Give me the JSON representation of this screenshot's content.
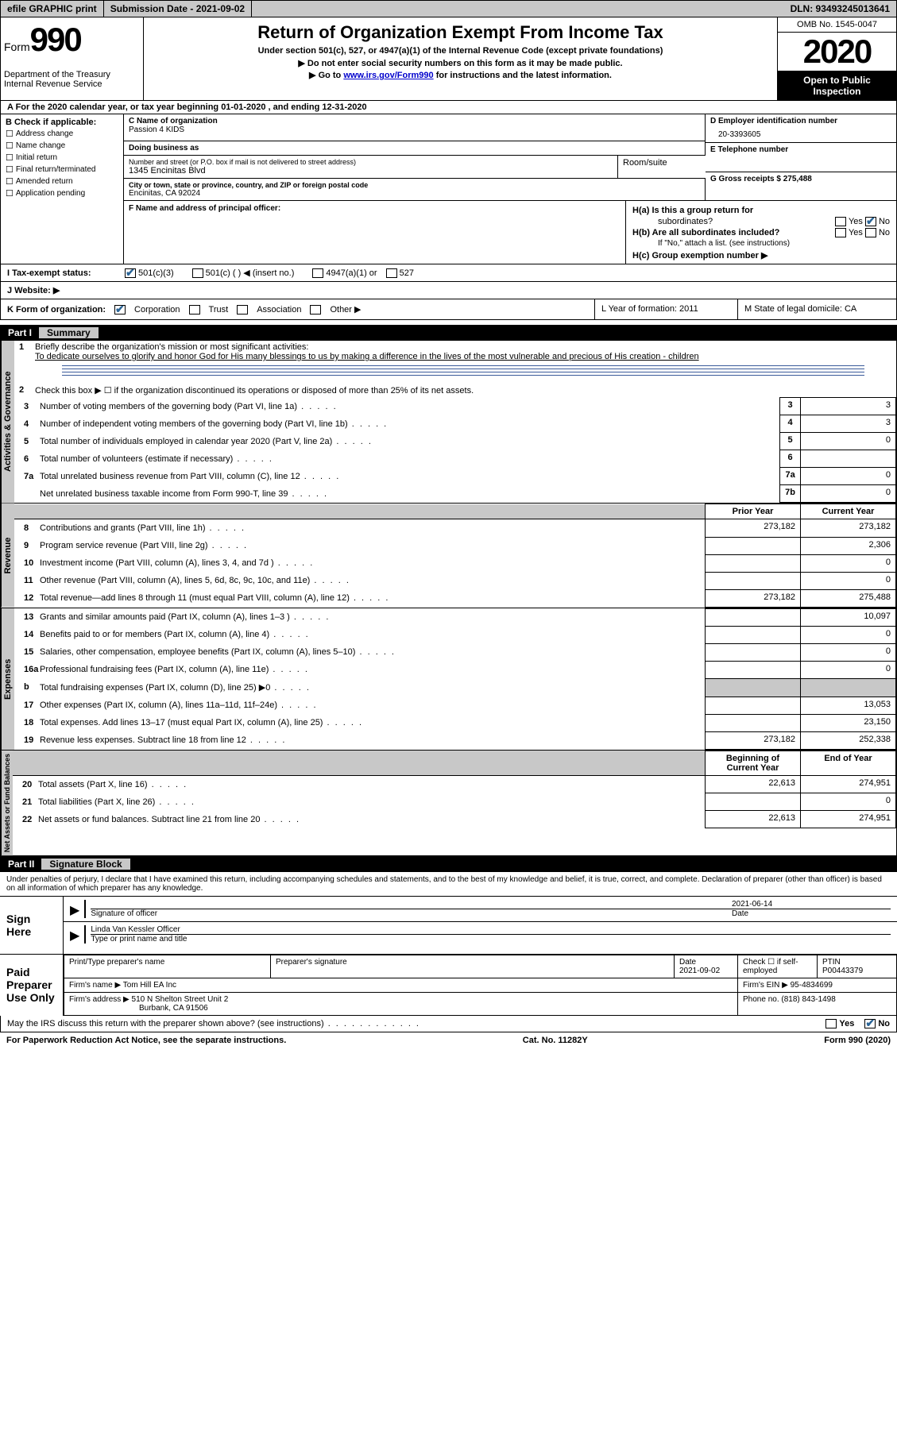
{
  "topbar": {
    "efile": "efile GRAPHIC print",
    "submission_label": "Submission Date - 2021-09-02",
    "dln_label": "DLN: 93493245013641"
  },
  "header": {
    "form_label": "Form",
    "form_number": "990",
    "dept": "Department of the Treasury",
    "irs": "Internal Revenue Service",
    "title": "Return of Organization Exempt From Income Tax",
    "subtitle": "Under section 501(c), 527, or 4947(a)(1) of the Internal Revenue Code (except private foundations)",
    "note1": "▶ Do not enter social security numbers on this form as it may be made public.",
    "note2_pre": "▶ Go to ",
    "note2_link": "www.irs.gov/Form990",
    "note2_post": " for instructions and the latest information.",
    "omb": "OMB No. 1545-0047",
    "year": "2020",
    "inspection": "Open to Public Inspection"
  },
  "section_a": "A   For the 2020 calendar year, or tax year beginning 01-01-2020    , and ending 12-31-2020",
  "col_b": {
    "label": "B Check if applicable:",
    "items": [
      "Address change",
      "Name change",
      "Initial return",
      "Final return/terminated",
      "Amended return",
      "Application pending"
    ]
  },
  "col_c": {
    "name_label": "C Name of organization",
    "name": "Passion 4 KIDS",
    "dba_label": "Doing business as",
    "addr_label": "Number and street (or P.O. box if mail is not delivered to street address)",
    "addr": "1345 Encinitas Blvd",
    "room_label": "Room/suite",
    "city_label": "City or town, state or province, country, and ZIP or foreign postal code",
    "city": "Encinitas, CA  92024"
  },
  "col_de": {
    "d_label": "D Employer identification number",
    "d_value": "20-3393605",
    "e_label": "E Telephone number",
    "g_label": "G Gross receipts $ 275,488"
  },
  "officer": {
    "f_label": "F Name and address of principal officer:",
    "ha": "H(a)  Is this a group return for",
    "ha2": "subordinates?",
    "hb": "H(b)  Are all subordinates included?",
    "hb_note": "If \"No,\" attach a list. (see instructions)",
    "hc": "H(c)  Group exemption number ▶",
    "yes": "Yes",
    "no": "No"
  },
  "status": {
    "i_label": "I    Tax-exempt status:",
    "opt1": "501(c)(3)",
    "opt2": "501(c) (  ) ◀ (insert no.)",
    "opt3": "4947(a)(1) or",
    "opt4": "527"
  },
  "website": {
    "j_label": "J    Website: ▶"
  },
  "k_row": {
    "k_label": "K Form of organization:",
    "corp": "Corporation",
    "trust": "Trust",
    "assoc": "Association",
    "other": "Other ▶",
    "l_label": "L Year of formation: 2011",
    "m_label": "M State of legal domicile: CA"
  },
  "part1": {
    "header_num": "Part I",
    "header_title": "Summary",
    "line1_label": "Briefly describe the organization's mission or most significant activities:",
    "line1_text": "To dedicate ourselves to glorify and honor God for His many blessings to us by making a difference in the lives of the most vulnerable and precious of His creation - children",
    "line2": "Check this box ▶ ☐  if the organization discontinued its operations or disposed of more than 25% of its net assets.",
    "gov_label": "Activities & Governance",
    "rev_label": "Revenue",
    "exp_label": "Expenses",
    "net_label": "Net Assets or Fund Balances",
    "lines_gov": [
      {
        "n": "3",
        "t": "Number of voting members of the governing body (Part VI, line 1a)",
        "b": "3",
        "v": "3"
      },
      {
        "n": "4",
        "t": "Number of independent voting members of the governing body (Part VI, line 1b)",
        "b": "4",
        "v": "3"
      },
      {
        "n": "5",
        "t": "Total number of individuals employed in calendar year 2020 (Part V, line 2a)",
        "b": "5",
        "v": "0"
      },
      {
        "n": "6",
        "t": "Total number of volunteers (estimate if necessary)",
        "b": "6",
        "v": ""
      },
      {
        "n": "7a",
        "t": "Total unrelated business revenue from Part VIII, column (C), line 12",
        "b": "7a",
        "v": "0"
      },
      {
        "n": "",
        "t": "Net unrelated business taxable income from Form 990-T, line 39",
        "b": "7b",
        "v": "0"
      }
    ],
    "prior_label": "Prior Year",
    "current_label": "Current Year",
    "lines_rev": [
      {
        "n": "8",
        "t": "Contributions and grants (Part VIII, line 1h)",
        "p": "273,182",
        "c": "273,182"
      },
      {
        "n": "9",
        "t": "Program service revenue (Part VIII, line 2g)",
        "p": "",
        "c": "2,306"
      },
      {
        "n": "10",
        "t": "Investment income (Part VIII, column (A), lines 3, 4, and 7d )",
        "p": "",
        "c": "0"
      },
      {
        "n": "11",
        "t": "Other revenue (Part VIII, column (A), lines 5, 6d, 8c, 9c, 10c, and 11e)",
        "p": "",
        "c": "0"
      },
      {
        "n": "12",
        "t": "Total revenue—add lines 8 through 11 (must equal Part VIII, column (A), line 12)",
        "p": "273,182",
        "c": "275,488"
      }
    ],
    "lines_exp": [
      {
        "n": "13",
        "t": "Grants and similar amounts paid (Part IX, column (A), lines 1–3 )",
        "p": "",
        "c": "10,097"
      },
      {
        "n": "14",
        "t": "Benefits paid to or for members (Part IX, column (A), line 4)",
        "p": "",
        "c": "0"
      },
      {
        "n": "15",
        "t": "Salaries, other compensation, employee benefits (Part IX, column (A), lines 5–10)",
        "p": "",
        "c": "0"
      },
      {
        "n": "16a",
        "t": "Professional fundraising fees (Part IX, column (A), line 11e)",
        "p": "",
        "c": "0"
      },
      {
        "n": "b",
        "t": "Total fundraising expenses (Part IX, column (D), line 25) ▶0",
        "p": "SHADE",
        "c": "SHADE"
      },
      {
        "n": "17",
        "t": "Other expenses (Part IX, column (A), lines 11a–11d, 11f–24e)",
        "p": "",
        "c": "13,053"
      },
      {
        "n": "18",
        "t": "Total expenses. Add lines 13–17 (must equal Part IX, column (A), line 25)",
        "p": "",
        "c": "23,150"
      },
      {
        "n": "19",
        "t": "Revenue less expenses. Subtract line 18 from line 12",
        "p": "273,182",
        "c": "252,338"
      }
    ],
    "begin_label": "Beginning of Current Year",
    "end_label": "End of Year",
    "lines_net": [
      {
        "n": "20",
        "t": "Total assets (Part X, line 16)",
        "p": "22,613",
        "c": "274,951"
      },
      {
        "n": "21",
        "t": "Total liabilities (Part X, line 26)",
        "p": "",
        "c": "0"
      },
      {
        "n": "22",
        "t": "Net assets or fund balances. Subtract line 21 from line 20",
        "p": "22,613",
        "c": "274,951"
      }
    ]
  },
  "part2": {
    "header_num": "Part II",
    "header_title": "Signature Block",
    "declaration": "Under penalties of perjury, I declare that I have examined this return, including accompanying schedules and statements, and to the best of my knowledge and belief, it is true, correct, and complete. Declaration of preparer (other than officer) is based on all information of which preparer has any knowledge.",
    "sign_here": "Sign Here",
    "sig_officer": "Signature of officer",
    "sig_date": "2021-06-14",
    "date_label": "Date",
    "officer_name": "Linda Van Kessler  Officer",
    "type_label": "Type or print name and title",
    "paid_prep": "Paid Preparer Use Only",
    "prep_name_label": "Print/Type preparer's name",
    "prep_sig_label": "Preparer's signature",
    "prep_date_label": "Date",
    "prep_date": "2021-09-02",
    "check_self": "Check ☐ if self-employed",
    "ptin_label": "PTIN",
    "ptin": "P00443379",
    "firm_name_label": "Firm's name    ▶ ",
    "firm_name": "Tom Hill EA Inc",
    "firm_ein_label": "Firm's EIN ▶ ",
    "firm_ein": "95-4834699",
    "firm_addr_label": "Firm's address ▶ ",
    "firm_addr": "510 N Shelton Street Unit 2",
    "firm_addr2": "Burbank, CA  91506",
    "phone_label": "Phone no. ",
    "phone": "(818) 843-1498",
    "discuss": "May the IRS discuss this return with the preparer shown above? (see instructions)"
  },
  "footer": {
    "paperwork": "For Paperwork Reduction Act Notice, see the separate instructions.",
    "cat": "Cat. No. 11282Y",
    "form": "Form 990 (2020)"
  }
}
